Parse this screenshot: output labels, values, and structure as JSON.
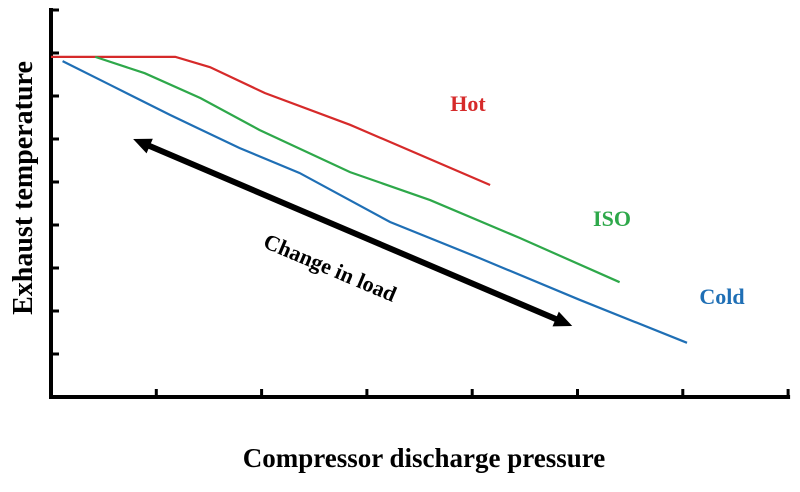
{
  "chart_data": {
    "type": "line",
    "title": "",
    "xlabel": "Compressor discharge pressure",
    "ylabel": "Exhaust temperature",
    "xlim": [
      0,
      7
    ],
    "ylim": [
      0,
      9
    ],
    "x_ticks": [
      0,
      1,
      2,
      3,
      4,
      5,
      6,
      7
    ],
    "y_ticks": [
      0,
      1,
      2,
      3,
      4,
      5,
      6,
      7,
      8,
      9
    ],
    "tick_labels_shown": false,
    "grid": false,
    "series": [
      {
        "name": "Hot",
        "color": "#d62a2a",
        "x": [
          0,
          1.18,
          1.51,
          2.03,
          2.84,
          4.17
        ],
        "y": [
          7.91,
          7.91,
          7.67,
          7.07,
          6.33,
          4.93
        ]
      },
      {
        "name": "ISO",
        "color": "#2ea84a",
        "x": [
          0.42,
          0.89,
          1.42,
          1.98,
          2.84,
          3.6,
          4.45,
          5.4
        ],
        "y": [
          7.91,
          7.53,
          6.95,
          6.21,
          5.23,
          4.58,
          3.7,
          2.67
        ]
      },
      {
        "name": "Cold",
        "color": "#1f6fb5",
        "x": [
          0.11,
          0.56,
          1.13,
          1.79,
          2.36,
          3.22,
          4.07,
          5.02,
          6.04
        ],
        "y": [
          7.81,
          7.26,
          6.56,
          5.79,
          5.21,
          4.07,
          3.23,
          2.26,
          1.26
        ]
      }
    ],
    "annotations": [
      {
        "text": "Change in load",
        "type": "double-arrow",
        "from": [
          0.78,
          6.0
        ],
        "to": [
          4.95,
          1.65
        ],
        "color": "#000000"
      }
    ]
  }
}
